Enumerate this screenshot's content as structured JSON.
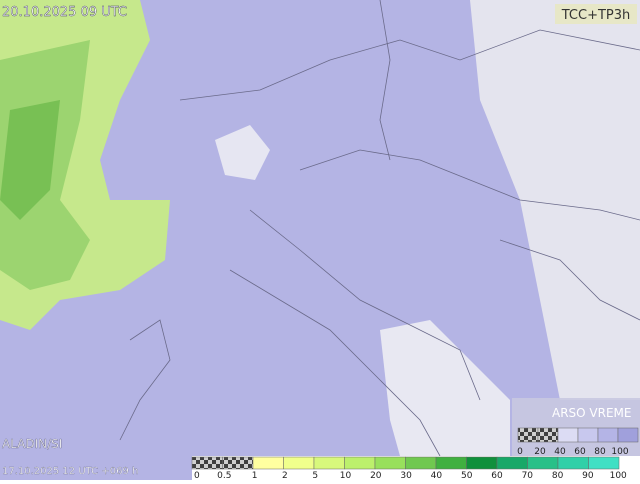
{
  "header": {
    "valid_time": "20.10.2025 09 UTC",
    "product": "TCC+TP3h"
  },
  "footer": {
    "model": "ALADIN/SI",
    "run": "17.10.2025 12 UTC +069 h"
  },
  "brand": "ARSO VREME",
  "cloud_legend": {
    "labels": [
      0,
      20,
      40,
      60,
      80,
      100
    ],
    "colors": [
      "checker",
      "checker",
      "#dcdcf4",
      "#c8c8ee",
      "#b4b4e6",
      "#a0a0dc"
    ]
  },
  "precip_legend": {
    "labels": [
      0,
      0.5,
      1,
      2,
      5,
      10,
      20,
      30,
      40,
      50,
      60,
      70,
      80,
      90,
      100
    ],
    "colors": [
      "checker",
      "checker",
      "#ffffa0",
      "#f0ff8c",
      "#d8f87c",
      "#bcf06c",
      "#98e05c",
      "#70c850",
      "#40b040",
      "#10903c",
      "#18a868",
      "#28c088",
      "#30d0a8",
      "#40e0c4"
    ]
  }
}
